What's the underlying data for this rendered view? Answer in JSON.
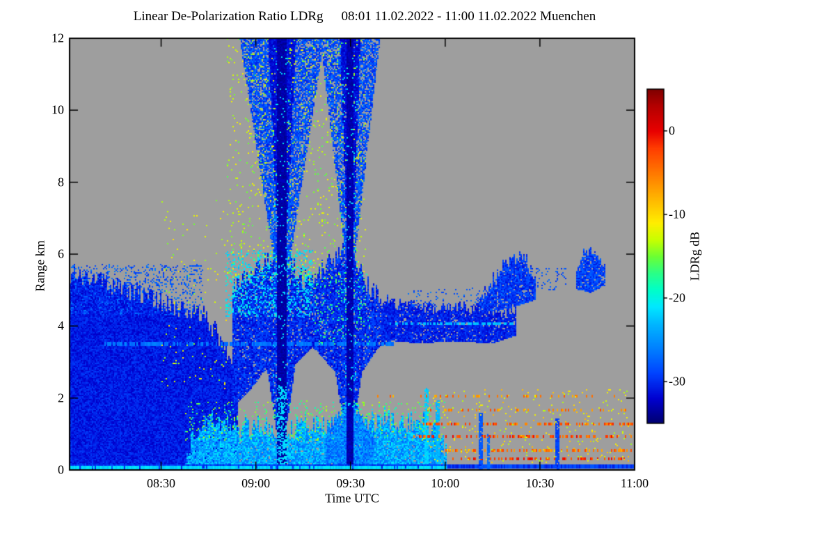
{
  "chart_data": {
    "type": "heatmap",
    "title": "Linear De-Polarization Ratio LDRg",
    "period": "08:01 11.02.2022 - 11:00 11.02.2022 Muenchen",
    "xlabel": "Time UTC",
    "ylabel": "Range km",
    "xlim_hours": [
      8.0167,
      11.0
    ],
    "ylim": [
      0,
      12
    ],
    "x_ticks": [
      {
        "t": 8.5,
        "label": "08:30"
      },
      {
        "t": 9.0,
        "label": "09:00"
      },
      {
        "t": 9.5,
        "label": "09:30"
      },
      {
        "t": 10.0,
        "label": "10:00"
      },
      {
        "t": 10.5,
        "label": "10:30"
      },
      {
        "t": 11.0,
        "label": "11:00"
      }
    ],
    "y_ticks": [
      {
        "z": 0,
        "label": "0"
      },
      {
        "z": 2,
        "label": "2"
      },
      {
        "z": 4,
        "label": "4"
      },
      {
        "z": 6,
        "label": "6"
      },
      {
        "z": 8,
        "label": "8"
      },
      {
        "z": 10,
        "label": "10"
      },
      {
        "z": 12,
        "label": "12"
      }
    ],
    "no_data_color": "#9e9e9e",
    "colorbar": {
      "label": "LDRg dB",
      "vmin": -35,
      "vmax": 5,
      "ticks": [
        {
          "v": 0,
          "label": "0"
        },
        {
          "v": -10,
          "label": "-10"
        },
        {
          "v": -20,
          "label": "-20"
        },
        {
          "v": -30,
          "label": "-30"
        }
      ],
      "stops": [
        [
          -35,
          "#00006e"
        ],
        [
          -32,
          "#0000d0"
        ],
        [
          -29,
          "#0043ff"
        ],
        [
          -26,
          "#0080ff"
        ],
        [
          -23,
          "#00b8ff"
        ],
        [
          -21,
          "#00e8ff"
        ],
        [
          -19,
          "#00ffc8"
        ],
        [
          -17,
          "#2bff86"
        ],
        [
          -15,
          "#6cff33"
        ],
        [
          -13,
          "#c8ff00"
        ],
        [
          -11,
          "#ffee00"
        ],
        [
          -8,
          "#ffb400"
        ],
        [
          -5,
          "#ff7800"
        ],
        [
          -2,
          "#ff3c00"
        ],
        [
          0,
          "#e80000"
        ],
        [
          3,
          "#b40000"
        ],
        [
          5,
          "#800000"
        ]
      ]
    },
    "render_seed": 7,
    "features": [
      {
        "type": "fill_profile",
        "name": "left-cloud-mass",
        "t0": 8.0167,
        "t1": 8.9,
        "top": [
          [
            8.0167,
            5.45
          ],
          [
            8.15,
            5.3
          ],
          [
            8.3,
            5.05
          ],
          [
            8.45,
            4.8
          ],
          [
            8.6,
            4.4
          ],
          [
            8.72,
            4.35
          ],
          [
            8.82,
            3.6
          ],
          [
            8.9,
            2.8
          ]
        ],
        "base": 0,
        "value": -30.8,
        "vnoise": 1.6,
        "jitter": 0.28,
        "fill_prob": 1
      },
      {
        "type": "speckle",
        "name": "left-mass-top-fringe",
        "t0": 8.02,
        "t1": 8.72,
        "z0": 4.3,
        "z1": 5.7,
        "count": 800,
        "vmin": -30,
        "vmax": -26
      },
      {
        "type": "fill_profile",
        "name": "mid-curtain",
        "t0": 8.88,
        "t1": 9.73,
        "top": [
          [
            8.88,
            5.0
          ],
          [
            8.95,
            5.3
          ],
          [
            9.05,
            5.8
          ],
          [
            9.135,
            6.2
          ],
          [
            9.2,
            5.6
          ],
          [
            9.28,
            5.2
          ],
          [
            9.35,
            5.6
          ],
          [
            9.43,
            5.9
          ],
          [
            9.495,
            6.3
          ],
          [
            9.56,
            5.4
          ],
          [
            9.65,
            4.8
          ],
          [
            9.73,
            4.5
          ]
        ],
        "base": [
          [
            8.88,
            1.7
          ],
          [
            8.97,
            2.2
          ],
          [
            9.06,
            2.8
          ],
          [
            9.135,
            0.15
          ],
          [
            9.21,
            2.9
          ],
          [
            9.3,
            3.4
          ],
          [
            9.42,
            2.7
          ],
          [
            9.495,
            0.2
          ],
          [
            9.56,
            2.7
          ],
          [
            9.65,
            3.4
          ],
          [
            9.73,
            3.6
          ]
        ],
        "value": -30,
        "vnoise": 2.2,
        "jitter": 0.3,
        "fill_prob": 0.93
      },
      {
        "type": "streak",
        "name": "inner-light-line",
        "z": 3.52,
        "t0": 8.2,
        "t1": 9.72,
        "thickness": 0.1,
        "value": -26.5,
        "density": 0.7,
        "vjitter": 1
      },
      {
        "type": "cone",
        "name": "plume1-upper-cone",
        "t": 9.135,
        "z0": 5.5,
        "z1": 12,
        "w0": 0.03,
        "w1": 0.22,
        "value": -28.5,
        "vnoise": 2.2,
        "fill_prob": 0.78
      },
      {
        "type": "cone",
        "name": "plume1-inner-cone",
        "t": 9.135,
        "z0": 5.5,
        "z1": 12,
        "w0": 0.012,
        "w1": 0.07,
        "value": -31.5,
        "vnoise": 1.2,
        "fill_prob": 0.95
      },
      {
        "type": "cone",
        "name": "plume2-upper-cone",
        "t": 9.495,
        "z0": 5.8,
        "z1": 12,
        "w0": 0.02,
        "w1": 0.155,
        "value": -28.5,
        "vnoise": 2.2,
        "fill_prob": 0.72
      },
      {
        "type": "cone",
        "name": "plume2-inner-cone",
        "t": 9.495,
        "z0": 5.8,
        "z1": 12,
        "w0": 0.01,
        "w1": 0.05,
        "value": -31.5,
        "vnoise": 1.2,
        "fill_prob": 0.95
      },
      {
        "type": "speckle",
        "name": "cyan-dot-band",
        "t0": 8.84,
        "t1": 9.3,
        "z0": 4.25,
        "z1": 6.1,
        "count": 900,
        "vmin": -23,
        "vmax": -19
      },
      {
        "type": "speckle",
        "name": "upper-yellow-speckle",
        "t0": 8.85,
        "t1": 9.58,
        "z0": 5.2,
        "z1": 12,
        "count": 850,
        "vmin": -16,
        "vmax": -11
      },
      {
        "type": "speckle",
        "name": "left-sparse-yellow",
        "t0": 8.5,
        "t1": 8.85,
        "z0": 2.2,
        "z1": 7.5,
        "count": 110,
        "vmin": -15,
        "vmax": -10
      },
      {
        "type": "speckle",
        "name": "between-plume-green",
        "t0": 9.3,
        "t1": 9.6,
        "z0": 3.5,
        "z1": 5.5,
        "count": 200,
        "vmin": -20,
        "vmax": -15
      },
      {
        "type": "fill_profile",
        "name": "low-turbulent-layer",
        "t0": 8.63,
        "t1": 10.0,
        "top": [
          [
            8.63,
            0.5
          ],
          [
            8.7,
            1.0
          ],
          [
            8.78,
            1.35
          ],
          [
            8.9,
            1.1
          ],
          [
            9.0,
            1.25
          ],
          [
            9.1,
            1.0
          ],
          [
            9.2,
            1.15
          ],
          [
            9.3,
            1.35
          ],
          [
            9.38,
            1.1
          ],
          [
            9.5,
            1.6
          ],
          [
            9.6,
            1.3
          ],
          [
            9.7,
            1.5
          ],
          [
            9.78,
            1.2
          ],
          [
            9.85,
            1.45
          ],
          [
            9.95,
            1.0
          ],
          [
            10.0,
            0.6
          ]
        ],
        "base": 0,
        "value": -24,
        "vnoise": 3.4,
        "jitter": 0.35,
        "fill_prob": 0.96
      },
      {
        "type": "speckle",
        "name": "low-layer-top-flecks",
        "t0": 8.63,
        "t1": 10.0,
        "z0": 0.8,
        "z1": 1.9,
        "count": 500,
        "vmin": -19,
        "vmax": -13
      },
      {
        "type": "fill_profile",
        "name": "plume2-mound",
        "t0": 9.37,
        "t1": 9.62,
        "top": [
          [
            9.37,
            0.9
          ],
          [
            9.43,
            1.5
          ],
          [
            9.49,
            1.9
          ],
          [
            9.55,
            1.5
          ],
          [
            9.62,
            0.9
          ]
        ],
        "base": 0,
        "value": -26,
        "vnoise": 3,
        "jitter": 0.15,
        "fill_prob": 0.95
      },
      {
        "type": "plume",
        "name": "plume1-core",
        "t": 9.135,
        "halfwidth": 0.022,
        "z0": 0,
        "z1": 12,
        "value": -33.2,
        "vnoise": 0.8
      },
      {
        "type": "speckle",
        "name": "plume1-edge-cyan",
        "t0": 9.09,
        "t1": 9.18,
        "z0": 1.8,
        "z1": 11.8,
        "count": 170,
        "vmin": -23,
        "vmax": -20
      },
      {
        "type": "vline",
        "name": "plume1-cyan-ladder",
        "t": 9.135,
        "halfwidth": 0.02,
        "z0": 0,
        "z1": 2.3,
        "value": -21.5,
        "density": 0.5
      },
      {
        "type": "plume",
        "name": "plume2-core",
        "t": 9.495,
        "halfwidth": 0.014,
        "z0": 0,
        "z1": 12,
        "value": -33,
        "vnoise": 0.8
      },
      {
        "type": "speckle",
        "name": "plume2-edge-cyan",
        "t0": 9.455,
        "t1": 9.535,
        "z0": 1.5,
        "z1": 11.5,
        "count": 170,
        "vmin": -23,
        "vmax": -19
      },
      {
        "type": "vline",
        "name": "low-spike-1",
        "t": 9.9,
        "halfwidth": 0.008,
        "z0": 0,
        "z1": 2.25,
        "value": -22,
        "density": 0.85
      },
      {
        "type": "vline",
        "name": "low-spike-2",
        "t": 9.955,
        "halfwidth": 0.007,
        "z0": 0,
        "z1": 1.9,
        "value": -23,
        "density": 0.85
      },
      {
        "type": "streak",
        "name": "bottom-blue-line",
        "z": 0.08,
        "t0": 8.0167,
        "t1": 11.0,
        "thickness": 0.13,
        "value": -29.5,
        "density": 1,
        "vjitter": 1.5
      },
      {
        "type": "streak",
        "name": "bottom-cyan-line",
        "z": 0.06,
        "t0": 8.0167,
        "t1": 10.0,
        "thickness": 0.1,
        "value": -21.5,
        "density": 0.9,
        "vjitter": 1
      },
      {
        "type": "fill_profile",
        "name": "right-mid-band",
        "t0": 9.66,
        "t1": 10.37,
        "top": [
          [
            9.66,
            4.55
          ],
          [
            9.8,
            4.6
          ],
          [
            9.95,
            4.5
          ],
          [
            10.1,
            4.5
          ],
          [
            10.25,
            4.45
          ],
          [
            10.37,
            4.35
          ]
        ],
        "base": [
          [
            9.66,
            3.6
          ],
          [
            9.85,
            3.5
          ],
          [
            10.05,
            3.55
          ],
          [
            10.25,
            3.5
          ],
          [
            10.37,
            3.7
          ]
        ],
        "value": -30.5,
        "vnoise": 1.6,
        "jitter": 0.18,
        "fill_prob": 0.92
      },
      {
        "type": "streak",
        "name": "band-cyan-line",
        "z": 4.05,
        "t0": 9.7,
        "t1": 10.35,
        "thickness": 0.09,
        "value": -23,
        "density": 0.6,
        "vjitter": 1
      },
      {
        "type": "fill_profile",
        "name": "rising-blob",
        "t0": 10.18,
        "t1": 10.47,
        "top": [
          [
            10.18,
            4.6
          ],
          [
            10.24,
            5.2
          ],
          [
            10.3,
            5.6
          ],
          [
            10.36,
            5.95
          ],
          [
            10.42,
            5.9
          ],
          [
            10.47,
            5.4
          ]
        ],
        "base": [
          [
            10.18,
            4.3
          ],
          [
            10.26,
            4.4
          ],
          [
            10.36,
            4.5
          ],
          [
            10.47,
            4.7
          ]
        ],
        "value": -29.5,
        "vnoise": 2,
        "jitter": 0.2,
        "fill_prob": 0.9
      },
      {
        "type": "fill_profile",
        "name": "far-right-blob",
        "t0": 10.69,
        "t1": 10.84,
        "top": [
          [
            10.69,
            5.55
          ],
          [
            10.73,
            6.05
          ],
          [
            10.78,
            6.1
          ],
          [
            10.84,
            5.7
          ]
        ],
        "base": [
          [
            10.69,
            5.0
          ],
          [
            10.77,
            4.9
          ],
          [
            10.84,
            5.1
          ]
        ],
        "value": -29,
        "vnoise": 2,
        "jitter": 0.15,
        "fill_prob": 0.88
      },
      {
        "type": "speckle",
        "name": "band-top-dots",
        "t0": 9.8,
        "t1": 10.35,
        "z0": 4.5,
        "z1": 5.05,
        "count": 120,
        "vmin": -30,
        "vmax": -26
      },
      {
        "type": "speckle",
        "name": "pre-blob-dots",
        "t0": 10.48,
        "t1": 10.64,
        "z0": 5.0,
        "z1": 5.6,
        "count": 50,
        "vmin": -30,
        "vmax": -27
      },
      {
        "type": "streak",
        "name": "orange-streak-2km",
        "z": 2.05,
        "t0": 9.58,
        "t1": 10.9,
        "thickness": 0.07,
        "value": -6,
        "density": 0.22,
        "vjitter": 3
      },
      {
        "type": "streak",
        "name": "orange-streak-1p65km",
        "z": 1.65,
        "t0": 9.9,
        "t1": 10.95,
        "thickness": 0.07,
        "value": -5,
        "density": 0.3,
        "vjitter": 3
      },
      {
        "type": "streak",
        "name": "orange-streak-1p3km",
        "z": 1.28,
        "t0": 9.88,
        "t1": 11.0,
        "thickness": 0.08,
        "value": -4,
        "density": 0.45,
        "vjitter": 3
      },
      {
        "type": "streak",
        "name": "red-streak-0p9km",
        "z": 0.92,
        "t0": 9.8,
        "t1": 11.0,
        "thickness": 0.09,
        "value": -3,
        "density": 0.55,
        "vjitter": 3
      },
      {
        "type": "streak",
        "name": "orange-streak-0p55km",
        "z": 0.55,
        "t0": 9.98,
        "t1": 11.0,
        "thickness": 0.08,
        "value": -5,
        "density": 0.5,
        "vjitter": 3
      },
      {
        "type": "streak",
        "name": "red-streak-0p3km",
        "z": 0.3,
        "t0": 10.03,
        "t1": 10.95,
        "thickness": 0.08,
        "value": -2,
        "density": 0.42,
        "vjitter": 2
      },
      {
        "type": "speckle",
        "name": "right-low-yellow",
        "t0": 9.9,
        "t1": 10.98,
        "z0": 0.2,
        "z1": 2.25,
        "count": 260,
        "vmin": -14,
        "vmax": -8
      },
      {
        "type": "vline",
        "name": "right-blue-dash-1",
        "t": 10.185,
        "halfwidth": 0.007,
        "z0": 0,
        "z1": 1.55,
        "value": -28,
        "density": 0.85
      },
      {
        "type": "vline",
        "name": "right-blue-dash-2",
        "t": 10.225,
        "halfwidth": 0.006,
        "z0": 0,
        "z1": 1.0,
        "value": -27,
        "density": 0.8
      },
      {
        "type": "vline",
        "name": "right-blue-dash-3",
        "t": 10.59,
        "halfwidth": 0.008,
        "z0": 0,
        "z1": 1.4,
        "value": -29,
        "density": 0.85
      }
    ]
  }
}
